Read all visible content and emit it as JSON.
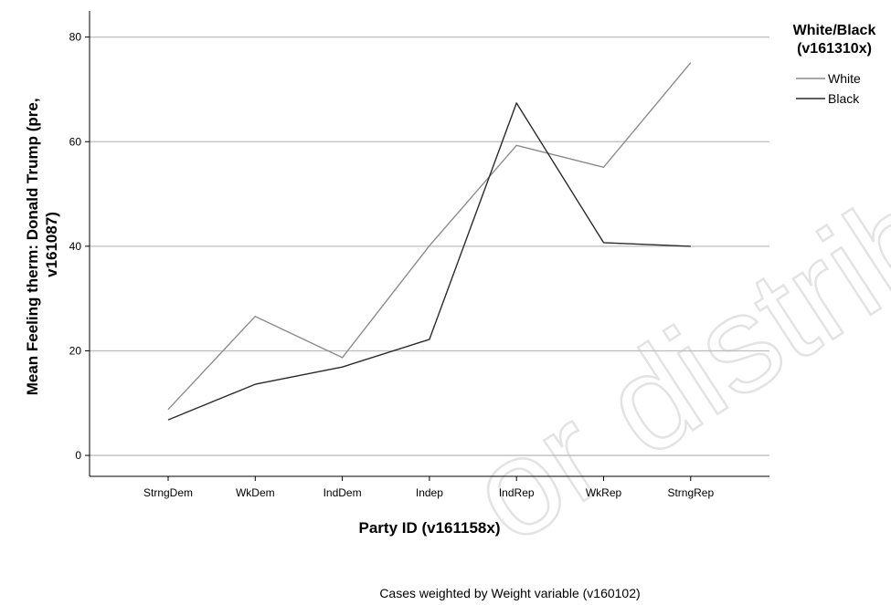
{
  "chart_data": {
    "type": "line",
    "xlabel": "Party  ID (v161158x)",
    "ylabel_lines": [
      "Mean Feeling therm: Donald Trump (pre,",
      "v161087)"
    ],
    "categories": [
      "StrngDem",
      "WkDem",
      "IndDem",
      "Indep",
      "IndRep",
      "WkRep",
      "StrngRep"
    ],
    "ylim": [
      -4,
      85
    ],
    "yticks": [
      0,
      20,
      40,
      60,
      80
    ],
    "grid": true,
    "legend": {
      "title_lines": [
        "White/Black",
        "(v161310x)"
      ],
      "placement": "top-right"
    },
    "series": [
      {
        "name": "White",
        "color": "#8c8c8c",
        "values": [
          8.8,
          26.6,
          18.7,
          40.1,
          59.3,
          55.1,
          75.1
        ]
      },
      {
        "name": "Black",
        "color": "#2a2a2a",
        "values": [
          6.8,
          13.6,
          16.9,
          22.2,
          67.4,
          40.7,
          40.0
        ]
      }
    ],
    "footnote": "Cases weighted by Weight variable (v160102)"
  },
  "watermark": "or distribute"
}
